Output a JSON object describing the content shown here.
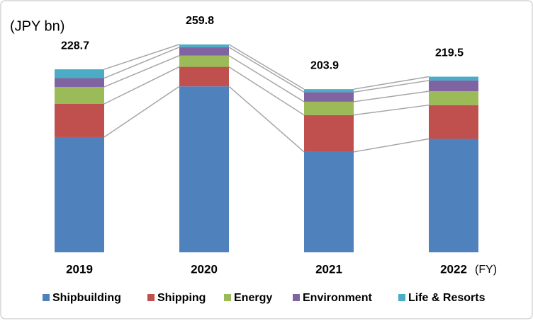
{
  "chart_data": {
    "type": "stacked_bar",
    "unit_label": "(JPY bn)",
    "x_unit_label": "(FY)",
    "categories": [
      "2019",
      "2020",
      "2021",
      "2022"
    ],
    "series": [
      {
        "name": "Shipbuilding",
        "color": "#4f81bd",
        "values": [
          144,
          207.4,
          125.5,
          141.8
        ]
      },
      {
        "name": "Shipping",
        "color": "#c0504d",
        "values": [
          41.5,
          24.4,
          46.1,
          42.2
        ]
      },
      {
        "name": "Energy",
        "color": "#9bbb59",
        "values": [
          21.2,
          14,
          16.6,
          17.3
        ]
      },
      {
        "name": "Environment",
        "color": "#8064a2",
        "values": [
          11,
          10.5,
          12,
          13.4
        ]
      },
      {
        "name": "Life & Resorts",
        "color": "#4bacc6",
        "values": [
          11,
          3.5,
          3.7,
          4.8
        ]
      }
    ],
    "totals": [
      228.7,
      259.8,
      203.9,
      219.5
    ],
    "ylim": [
      0,
      280
    ],
    "grid": false,
    "legend": "bottom"
  }
}
